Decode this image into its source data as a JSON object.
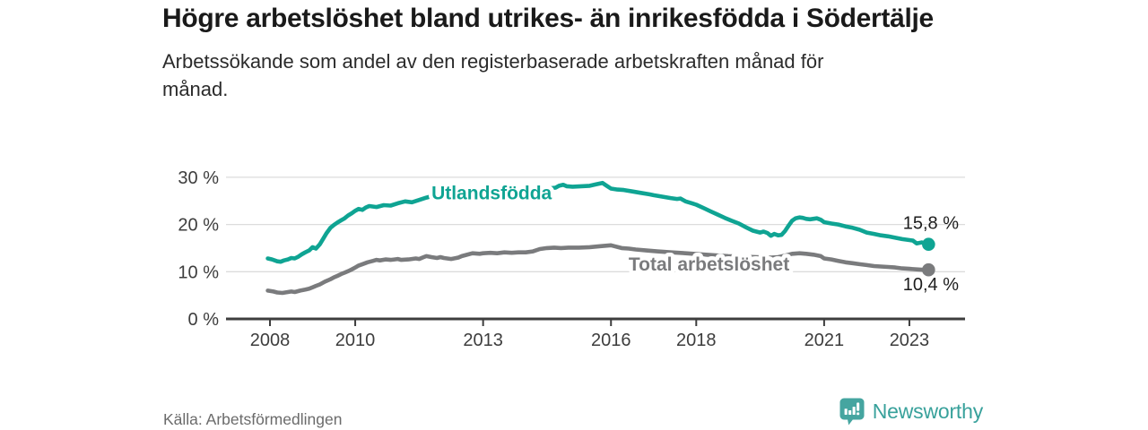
{
  "header": {
    "title": "Högre arbetslöshet bland utrikes- än inrikesfödda i Södertälje",
    "subtitle": "Arbetssökande som andel av den registerbaserade arbetskraften månad för månad."
  },
  "footer": {
    "source": "Källa: Arbetsförmedlingen",
    "brand": "Newsworthy"
  },
  "colors": {
    "accent_teal": "#0fa493",
    "line_gray": "#7a7b7d",
    "brand_teal": "#45a5a0",
    "grid": "#dcdcdc",
    "axis": "#3d3d3d",
    "tick_text": "#3d3d3d",
    "end_label_text": "#1d1d1d"
  },
  "chart_data": {
    "type": "line",
    "title": "Högre arbetslöshet bland utrikes- än inrikesfödda i Södertälje",
    "subtitle": "Arbetssökande som andel av den registerbaserade arbetskraften månad för månad.",
    "unit": "%",
    "grid": "horizontal",
    "legend_position": "inline-on-line",
    "ylim": [
      0,
      30
    ],
    "x_range": [
      2007.95,
      2023.45
    ],
    "y_ticks": [
      {
        "value": 0,
        "label": "0 %"
      },
      {
        "value": 10,
        "label": "10 %"
      },
      {
        "value": 20,
        "label": "20 %"
      },
      {
        "value": 30,
        "label": "30 %"
      }
    ],
    "x_ticks": [
      {
        "value": 2008,
        "label": "2008"
      },
      {
        "value": 2010,
        "label": "2010"
      },
      {
        "value": 2013,
        "label": "2013"
      },
      {
        "value": 2016,
        "label": "2016"
      },
      {
        "value": 2018,
        "label": "2018"
      },
      {
        "value": 2021,
        "label": "2021"
      },
      {
        "value": 2023,
        "label": "2023"
      }
    ],
    "series": [
      {
        "name": "Utlandsfödda",
        "color": "#0fa493",
        "end_value": 15.8,
        "end_value_label": "15,8 %",
        "end_label_offset_y": -17,
        "inline_label": {
          "x": 2013.2,
          "y": 26.8
        },
        "points": [
          [
            2007.95,
            12.8
          ],
          [
            2008.05,
            12.6
          ],
          [
            2008.17,
            12.2
          ],
          [
            2008.25,
            12.1
          ],
          [
            2008.33,
            12.4
          ],
          [
            2008.42,
            12.6
          ],
          [
            2008.5,
            12.9
          ],
          [
            2008.58,
            12.8
          ],
          [
            2008.67,
            13.2
          ],
          [
            2008.75,
            13.7
          ],
          [
            2008.83,
            14.1
          ],
          [
            2008.92,
            14.5
          ],
          [
            2009,
            15.2
          ],
          [
            2009.08,
            14.9
          ],
          [
            2009.17,
            15.8
          ],
          [
            2009.25,
            17
          ],
          [
            2009.33,
            18.2
          ],
          [
            2009.42,
            19.3
          ],
          [
            2009.5,
            19.9
          ],
          [
            2009.58,
            20.4
          ],
          [
            2009.67,
            20.9
          ],
          [
            2009.75,
            21.3
          ],
          [
            2009.83,
            21.9
          ],
          [
            2009.92,
            22.4
          ],
          [
            2010,
            22.9
          ],
          [
            2010.08,
            23.3
          ],
          [
            2010.17,
            23.1
          ],
          [
            2010.25,
            23.6
          ],
          [
            2010.33,
            23.9
          ],
          [
            2010.5,
            23.7
          ],
          [
            2010.67,
            24.1
          ],
          [
            2010.83,
            24
          ],
          [
            2011,
            24.5
          ],
          [
            2011.17,
            24.9
          ],
          [
            2011.33,
            24.7
          ],
          [
            2011.5,
            25.2
          ],
          [
            2011.67,
            25.7
          ],
          [
            2011.83,
            26.1
          ],
          [
            2012,
            26.3
          ],
          [
            2012.25,
            26.4
          ],
          [
            2012.5,
            26.6
          ],
          [
            2012.75,
            26.8
          ],
          [
            2013,
            27
          ],
          [
            2013.25,
            27.1
          ],
          [
            2013.5,
            27.2
          ],
          [
            2013.75,
            27.3
          ],
          [
            2014,
            27.3
          ],
          [
            2014.25,
            27.4
          ],
          [
            2014.5,
            27.6
          ],
          [
            2014.7,
            27.8
          ],
          [
            2014.78,
            28.2
          ],
          [
            2014.88,
            28.4
          ],
          [
            2014.96,
            28.1
          ],
          [
            2015.1,
            28
          ],
          [
            2015.3,
            28.1
          ],
          [
            2015.5,
            28.2
          ],
          [
            2015.65,
            28.5
          ],
          [
            2015.8,
            28.8
          ],
          [
            2015.9,
            28.2
          ],
          [
            2016,
            27.6
          ],
          [
            2016.15,
            27.4
          ],
          [
            2016.3,
            27.3
          ],
          [
            2016.5,
            27
          ],
          [
            2016.7,
            26.7
          ],
          [
            2016.9,
            26.4
          ],
          [
            2017,
            26.2
          ],
          [
            2017.2,
            25.9
          ],
          [
            2017.4,
            25.6
          ],
          [
            2017.55,
            25.4
          ],
          [
            2017.63,
            25.5
          ],
          [
            2017.75,
            24.9
          ],
          [
            2017.9,
            24.5
          ],
          [
            2018,
            24.2
          ],
          [
            2018.17,
            23.5
          ],
          [
            2018.33,
            22.8
          ],
          [
            2018.5,
            22.1
          ],
          [
            2018.67,
            21.4
          ],
          [
            2018.83,
            20.8
          ],
          [
            2019,
            20.2
          ],
          [
            2019.17,
            19.4
          ],
          [
            2019.33,
            18.7
          ],
          [
            2019.5,
            18.3
          ],
          [
            2019.58,
            18.5
          ],
          [
            2019.67,
            18.2
          ],
          [
            2019.75,
            17.6
          ],
          [
            2019.83,
            18
          ],
          [
            2019.92,
            17.7
          ],
          [
            2020,
            17.8
          ],
          [
            2020.08,
            18.6
          ],
          [
            2020.17,
            19.8
          ],
          [
            2020.25,
            20.8
          ],
          [
            2020.33,
            21.3
          ],
          [
            2020.42,
            21.5
          ],
          [
            2020.5,
            21.4
          ],
          [
            2020.58,
            21.2
          ],
          [
            2020.67,
            21.1
          ],
          [
            2020.83,
            21.3
          ],
          [
            2020.92,
            21
          ],
          [
            2021,
            20.5
          ],
          [
            2021.17,
            20.2
          ],
          [
            2021.33,
            20
          ],
          [
            2021.5,
            19.6
          ],
          [
            2021.67,
            19.3
          ],
          [
            2021.83,
            18.9
          ],
          [
            2022,
            18.3
          ],
          [
            2022.17,
            18
          ],
          [
            2022.33,
            17.7
          ],
          [
            2022.5,
            17.5
          ],
          [
            2022.67,
            17.2
          ],
          [
            2022.83,
            16.9
          ],
          [
            2023,
            16.7
          ],
          [
            2023.08,
            16.6
          ],
          [
            2023.17,
            16
          ],
          [
            2023.29,
            16.2
          ],
          [
            2023.37,
            16
          ],
          [
            2023.45,
            15.8
          ]
        ]
      },
      {
        "name": "Total arbetslöshet",
        "color": "#7a7b7d",
        "end_value": 10.4,
        "end_value_label": "10,4 %",
        "end_label_offset_y": 23,
        "inline_label": {
          "x": 2018.3,
          "y": 11.7
        },
        "points": [
          [
            2007.95,
            6
          ],
          [
            2008.08,
            5.8
          ],
          [
            2008.17,
            5.6
          ],
          [
            2008.29,
            5.5
          ],
          [
            2008.42,
            5.7
          ],
          [
            2008.5,
            5.8
          ],
          [
            2008.58,
            5.7
          ],
          [
            2008.71,
            6
          ],
          [
            2008.83,
            6.2
          ],
          [
            2008.92,
            6.4
          ],
          [
            2009,
            6.7
          ],
          [
            2009.08,
            7
          ],
          [
            2009.17,
            7.3
          ],
          [
            2009.29,
            7.9
          ],
          [
            2009.42,
            8.4
          ],
          [
            2009.5,
            8.8
          ],
          [
            2009.58,
            9.1
          ],
          [
            2009.67,
            9.5
          ],
          [
            2009.75,
            9.8
          ],
          [
            2009.83,
            10.1
          ],
          [
            2009.92,
            10.5
          ],
          [
            2010,
            10.9
          ],
          [
            2010.08,
            11.3
          ],
          [
            2010.17,
            11.6
          ],
          [
            2010.29,
            12
          ],
          [
            2010.42,
            12.3
          ],
          [
            2010.5,
            12.5
          ],
          [
            2010.58,
            12.4
          ],
          [
            2010.71,
            12.6
          ],
          [
            2010.83,
            12.5
          ],
          [
            2010.92,
            12.6
          ],
          [
            2011,
            12.7
          ],
          [
            2011.08,
            12.5
          ],
          [
            2011.25,
            12.6
          ],
          [
            2011.42,
            12.8
          ],
          [
            2011.5,
            12.7
          ],
          [
            2011.58,
            13
          ],
          [
            2011.67,
            13.3
          ],
          [
            2011.79,
            13.1
          ],
          [
            2011.92,
            12.9
          ],
          [
            2012,
            13.1
          ],
          [
            2012.08,
            12.9
          ],
          [
            2012.25,
            12.7
          ],
          [
            2012.42,
            13
          ],
          [
            2012.5,
            13.3
          ],
          [
            2012.58,
            13.5
          ],
          [
            2012.75,
            13.9
          ],
          [
            2012.92,
            13.8
          ],
          [
            2013,
            13.9
          ],
          [
            2013.17,
            14
          ],
          [
            2013.33,
            13.9
          ],
          [
            2013.5,
            14.1
          ],
          [
            2013.67,
            14
          ],
          [
            2013.83,
            14.1
          ],
          [
            2014,
            14.1
          ],
          [
            2014.17,
            14.3
          ],
          [
            2014.33,
            14.8
          ],
          [
            2014.5,
            15
          ],
          [
            2014.67,
            15.1
          ],
          [
            2014.83,
            15
          ],
          [
            2015,
            15.1
          ],
          [
            2015.25,
            15.1
          ],
          [
            2015.5,
            15.2
          ],
          [
            2015.75,
            15.4
          ],
          [
            2016,
            15.6
          ],
          [
            2016.08,
            15.4
          ],
          [
            2016.25,
            15
          ],
          [
            2016.42,
            14.9
          ],
          [
            2016.58,
            14.7
          ],
          [
            2016.83,
            14.5
          ],
          [
            2017.08,
            14.3
          ],
          [
            2017.42,
            14.1
          ],
          [
            2017.75,
            13.9
          ],
          [
            2018.08,
            13.7
          ],
          [
            2018.42,
            13.5
          ],
          [
            2018.75,
            13.3
          ],
          [
            2019.08,
            13.2
          ],
          [
            2019.42,
            13.1
          ],
          [
            2019.75,
            13
          ],
          [
            2019.92,
            13.1
          ],
          [
            2020.08,
            13.4
          ],
          [
            2020.25,
            13.8
          ],
          [
            2020.42,
            13.9
          ],
          [
            2020.58,
            13.8
          ],
          [
            2020.75,
            13.6
          ],
          [
            2020.92,
            13.3
          ],
          [
            2021,
            12.8
          ],
          [
            2021.17,
            12.6
          ],
          [
            2021.33,
            12.3
          ],
          [
            2021.5,
            12
          ],
          [
            2021.67,
            11.8
          ],
          [
            2021.83,
            11.6
          ],
          [
            2022,
            11.4
          ],
          [
            2022.17,
            11.2
          ],
          [
            2022.33,
            11.1
          ],
          [
            2022.5,
            11
          ],
          [
            2022.67,
            10.9
          ],
          [
            2022.83,
            10.7
          ],
          [
            2023,
            10.6
          ],
          [
            2023.17,
            10.5
          ],
          [
            2023.33,
            10.4
          ],
          [
            2023.45,
            10.4
          ]
        ]
      }
    ]
  }
}
